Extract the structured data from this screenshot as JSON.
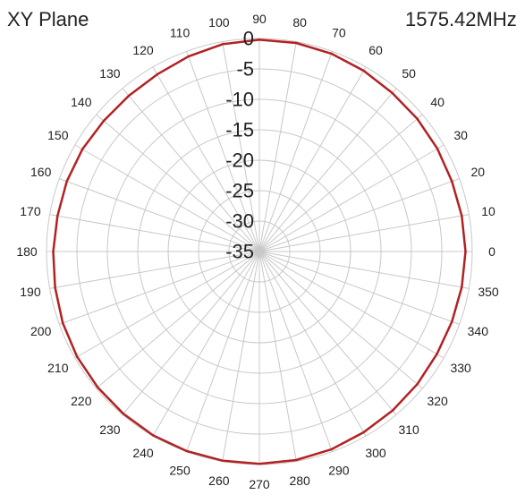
{
  "plane_label": "XY Plane",
  "frequency_label": "1575.42MHz",
  "colors": {
    "trace": "#b22222",
    "grid": "#c8c8c8",
    "text": "#222222",
    "background": "#ffffff"
  },
  "chart_data": {
    "type": "line",
    "subtype": "polar",
    "grid": true,
    "angle_unit": "degrees",
    "angle_direction": "counterclockwise, 0 at right",
    "radial_range": [
      -35,
      0
    ],
    "radial_ticks": [
      "0",
      "-5",
      "-10",
      "-15",
      "-20",
      "-25",
      "-30",
      "-35"
    ],
    "radial_tick_values": [
      0,
      -5,
      -10,
      -15,
      -20,
      -25,
      -30,
      -35
    ],
    "angle_ticks": [
      "0",
      "10",
      "20",
      "30",
      "40",
      "50",
      "60",
      "70",
      "80",
      "90",
      "100",
      "110",
      "120",
      "130",
      "140",
      "150",
      "160",
      "170",
      "180",
      "190",
      "200",
      "210",
      "220",
      "230",
      "240",
      "250",
      "260",
      "270",
      "280",
      "290",
      "300",
      "310",
      "320",
      "330",
      "340",
      "350"
    ],
    "angle_tick_values": [
      0,
      10,
      20,
      30,
      40,
      50,
      60,
      70,
      80,
      90,
      100,
      110,
      120,
      130,
      140,
      150,
      160,
      170,
      180,
      190,
      200,
      210,
      220,
      230,
      240,
      250,
      260,
      270,
      280,
      290,
      300,
      310,
      320,
      330,
      340,
      350
    ],
    "series": [
      {
        "angles": [
          0,
          10,
          20,
          30,
          40,
          50,
          60,
          70,
          80,
          90,
          100,
          110,
          120,
          130,
          140,
          150,
          160,
          170,
          180,
          190,
          200,
          210,
          220,
          230,
          240,
          250,
          260,
          270,
          280,
          290,
          300,
          310,
          320,
          330,
          340,
          350
        ],
        "values": [
          -1.1,
          -1.2,
          -1.3,
          -1.2,
          -1.1,
          -1.0,
          -0.7,
          -0.4,
          -0.2,
          -0.2,
          -0.4,
          -0.9,
          -1.4,
          -1.6,
          -1.6,
          -1.4,
          -1.3,
          -1.3,
          -1.1,
          -0.9,
          -0.6,
          -0.4,
          -0.3,
          -0.2,
          -0.1,
          -0.1,
          -0.1,
          -0.1,
          -0.2,
          -0.4,
          -0.7,
          -0.9,
          -1.1,
          -1.3,
          -1.3,
          -1.2
        ]
      }
    ]
  }
}
